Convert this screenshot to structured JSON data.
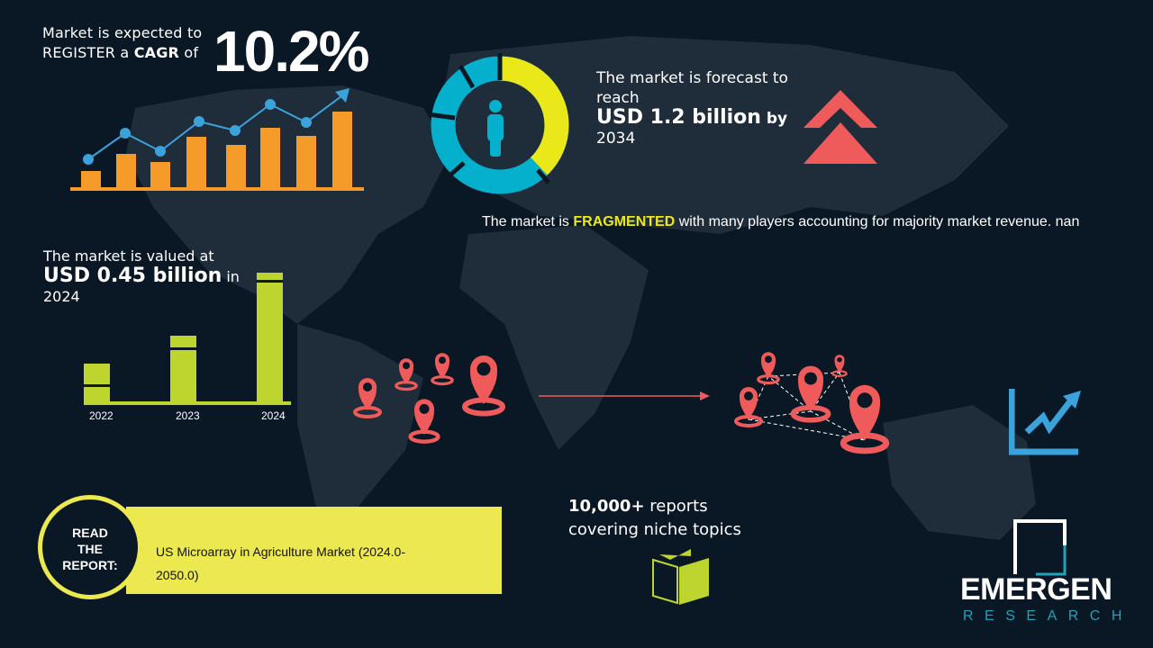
{
  "cagr": {
    "line1": "Market is expected to",
    "line2_pre": "REGISTER a ",
    "line2_bold": "CAGR",
    "line2_post": " of",
    "value": "10.2%"
  },
  "forecast": {
    "line1": "The market is forecast to reach",
    "value": "USD 1.2 billion",
    "by": " by",
    "year": "2034"
  },
  "fragmented": {
    "pre": "The market is ",
    "highlight": "FRAGMENTED",
    "post": " with many players accounting for majority market revenue. nan"
  },
  "valued": {
    "line1": "The market is valued at",
    "value": "USD 0.45 billion",
    "in": " in",
    "year": "2024"
  },
  "years": [
    "2022",
    "2023",
    "2024"
  ],
  "reports": {
    "bold": "10,000+",
    "line1_post": " reports",
    "line2": "covering niche topics"
  },
  "read_report": {
    "label_lines": [
      "READ",
      "THE",
      "REPORT:"
    ],
    "title": "US Microarray in Agriculture Market (2024.0-2050.0)"
  },
  "logo": {
    "name": "EMERGEN",
    "sub": "RESEARCH"
  },
  "colors": {
    "background": "#0a1826",
    "map": "#1f2d3a",
    "orange": "#f59b2a",
    "blue": "#3ba3dc",
    "yellow": "#ebe81a",
    "cyan": "#04b0cc",
    "red": "#ef5a5a",
    "green": "#bed530"
  }
}
